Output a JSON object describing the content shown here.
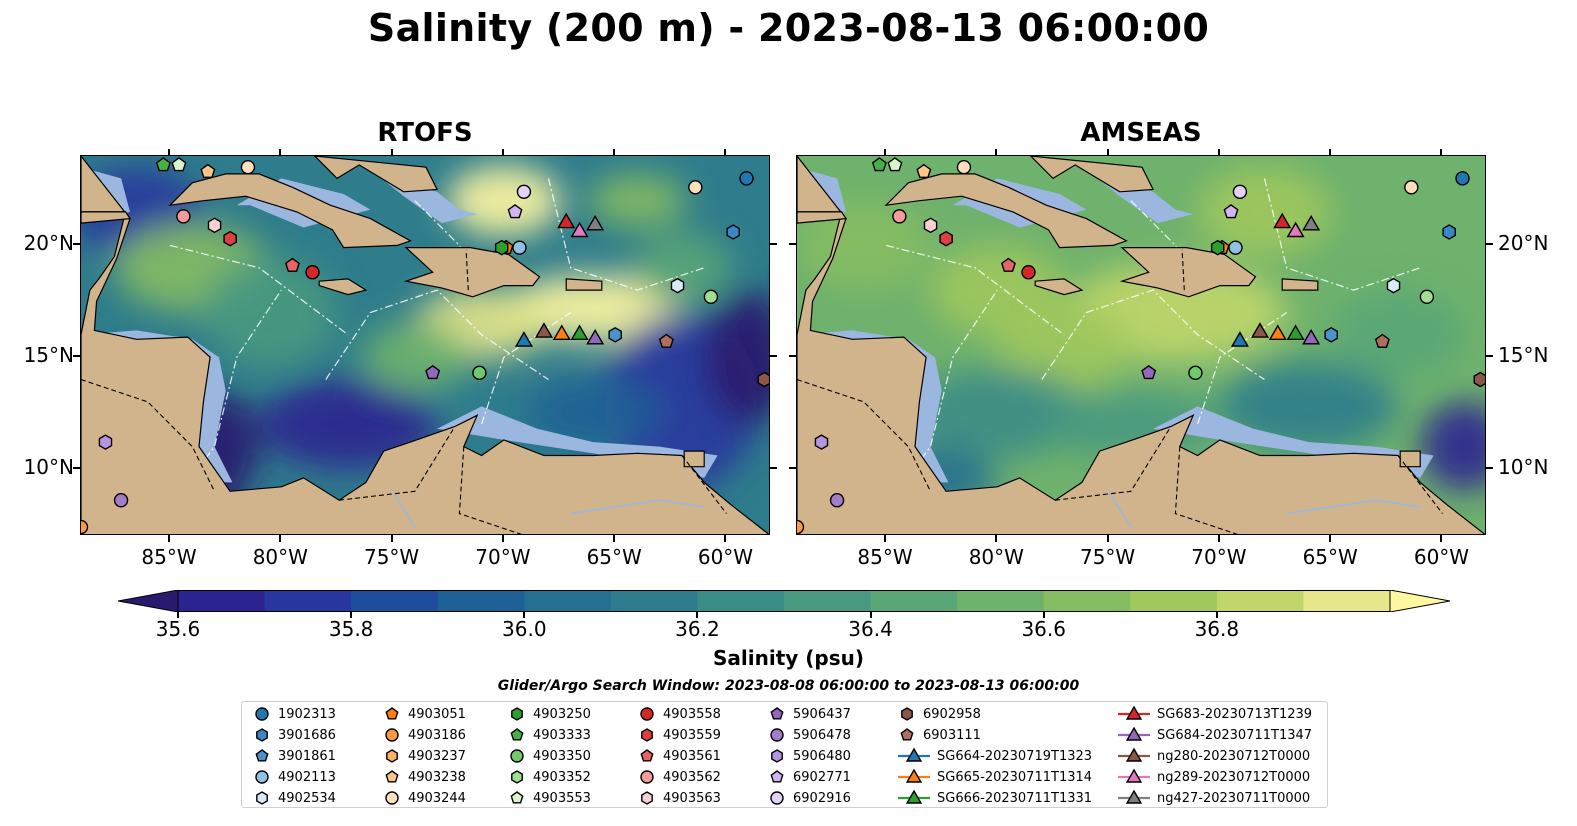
{
  "title": "Salinity (200 m) - 2023-08-13 06:00:00",
  "panels": [
    {
      "title": "RTOFS"
    },
    {
      "title": "AMSEAS"
    }
  ],
  "axes": {
    "x_ticks": [
      "85°W",
      "80°W",
      "75°W",
      "70°W",
      "65°W",
      "60°W"
    ],
    "y_ticks": [
      "20°N",
      "15°N",
      "10°N"
    ]
  },
  "colorbar": {
    "label": "Salinity (psu)",
    "ticks": [
      "35.6",
      "35.8",
      "36.0",
      "36.2",
      "36.4",
      "36.6",
      "36.8"
    ],
    "colors": [
      "#2a1a6e",
      "#2b2490",
      "#27379f",
      "#1f4d9e",
      "#1f6096",
      "#256f91",
      "#2f7d8c",
      "#3a8c86",
      "#48997f",
      "#5aa677",
      "#6fb26d",
      "#86bd63",
      "#a0c85c",
      "#c1d66a",
      "#e6e68a",
      "#fff7a1"
    ]
  },
  "search_window": "Glider/Argo Search Window: 2023-08-08 06:00:00 to 2023-08-13 06:00:00",
  "legend": {
    "items": [
      {
        "label": "1902313",
        "marker": "circle",
        "color": "#1f77b4"
      },
      {
        "label": "3901686",
        "marker": "hexagon",
        "color": "#3a87c8"
      },
      {
        "label": "3901861",
        "marker": "pentagon",
        "color": "#4a93d1"
      },
      {
        "label": "4902113",
        "marker": "circle",
        "color": "#8fc1e6"
      },
      {
        "label": "4902534",
        "marker": "hexagon",
        "color": "#d6eaf8"
      },
      {
        "label": "4903051",
        "marker": "pentagon",
        "color": "#ff7f0e"
      },
      {
        "label": "4903186",
        "marker": "circle",
        "color": "#ff9a3c"
      },
      {
        "label": "4903237",
        "marker": "hexagon",
        "color": "#ffb064"
      },
      {
        "label": "4903238",
        "marker": "pentagon",
        "color": "#ffc38c"
      },
      {
        "label": "4903244",
        "marker": "circle",
        "color": "#ffe0bc"
      },
      {
        "label": "4903250",
        "marker": "hexagon",
        "color": "#2ca02c"
      },
      {
        "label": "4903333",
        "marker": "pentagon",
        "color": "#45b045"
      },
      {
        "label": "4903350",
        "marker": "circle",
        "color": "#72c96a"
      },
      {
        "label": "4903352",
        "marker": "hexagon",
        "color": "#a2dd94"
      },
      {
        "label": "4903553",
        "marker": "pentagon",
        "color": "#d8f5cc"
      },
      {
        "label": "4903558",
        "marker": "circle",
        "color": "#d62728"
      },
      {
        "label": "4903559",
        "marker": "hexagon",
        "color": "#dd4040"
      },
      {
        "label": "4903561",
        "marker": "pentagon",
        "color": "#e86464"
      },
      {
        "label": "4903562",
        "marker": "circle",
        "color": "#f59b9b"
      },
      {
        "label": "4903563",
        "marker": "hexagon",
        "color": "#fcd0d0"
      },
      {
        "label": "5906437",
        "marker": "pentagon",
        "color": "#9467bd"
      },
      {
        "label": "5906478",
        "marker": "circle",
        "color": "#a57ccc"
      },
      {
        "label": "5906480",
        "marker": "hexagon",
        "color": "#b794e0"
      },
      {
        "label": "6902771",
        "marker": "pentagon",
        "color": "#d2b4f2"
      },
      {
        "label": "6902916",
        "marker": "circle",
        "color": "#e3d0fb"
      },
      {
        "label": "6902958",
        "marker": "hexagon",
        "color": "#8c564b"
      },
      {
        "label": "6903111",
        "marker": "pentagon",
        "color": "#b06e5f"
      },
      {
        "label": "SG664-20230719T1323",
        "marker": "triangle-line",
        "color": "#1f77b4"
      },
      {
        "label": "SG665-20230711T1314",
        "marker": "triangle-line",
        "color": "#ff7f0e"
      },
      {
        "label": "SG666-20230711T1331",
        "marker": "triangle-line",
        "color": "#2ca02c"
      },
      {
        "label": "SG683-20230713T1239",
        "marker": "triangle-line",
        "color": "#d62728"
      },
      {
        "label": "SG684-20230711T1347",
        "marker": "triangle-line",
        "color": "#9467bd"
      },
      {
        "label": "ng280-20230712T0000",
        "marker": "triangle-line",
        "color": "#8c564b"
      },
      {
        "label": "ng289-20230712T0000",
        "marker": "triangle-line",
        "color": "#e377c2"
      },
      {
        "label": "ng427-20230711T0000",
        "marker": "triangle-line",
        "color": "#7f7f7f"
      }
    ]
  },
  "map": {
    "lon_range": [
      -89,
      -58
    ],
    "lat_range": [
      7,
      24
    ],
    "land_color": "#d2b48c",
    "shallow_color": "#9bb7e0",
    "markers": [
      {
        "lon": -59.1,
        "lat": 23.0,
        "shape": "circle",
        "color": "#1f77b4"
      },
      {
        "lon": -59.7,
        "lat": 20.6,
        "shape": "hexagon",
        "color": "#3a87c8"
      },
      {
        "lon": -69.3,
        "lat": 19.9,
        "shape": "circle",
        "color": "#8fc1e6"
      },
      {
        "lon": -62.2,
        "lat": 18.2,
        "shape": "hexagon",
        "color": "#d6eaf8"
      },
      {
        "lon": -65.0,
        "lat": 16.0,
        "shape": "hexagon",
        "color": "#4a93d1"
      },
      {
        "lon": -69.9,
        "lat": 19.9,
        "shape": "pentagon",
        "color": "#ff7f0e"
      },
      {
        "lon": -89.0,
        "lat": 7.4,
        "shape": "circle",
        "color": "#ff9a3c"
      },
      {
        "lon": -83.3,
        "lat": 23.3,
        "shape": "pentagon",
        "color": "#ffc38c"
      },
      {
        "lon": -81.5,
        "lat": 23.5,
        "shape": "circle",
        "color": "#ffe0bc"
      },
      {
        "lon": -70.1,
        "lat": 19.9,
        "shape": "hexagon",
        "color": "#2ca02c"
      },
      {
        "lon": -85.3,
        "lat": 23.6,
        "shape": "pentagon",
        "color": "#45b045"
      },
      {
        "lon": -60.7,
        "lat": 17.7,
        "shape": "circle",
        "color": "#a2dd94"
      },
      {
        "lon": -71.1,
        "lat": 14.3,
        "shape": "circle",
        "color": "#72c96a"
      },
      {
        "lon": -84.6,
        "lat": 23.6,
        "shape": "pentagon",
        "color": "#d8f5cc"
      },
      {
        "lon": -78.6,
        "lat": 18.8,
        "shape": "circle",
        "color": "#d62728"
      },
      {
        "lon": -82.3,
        "lat": 20.3,
        "shape": "hexagon",
        "color": "#dd4040"
      },
      {
        "lon": -79.5,
        "lat": 19.1,
        "shape": "pentagon",
        "color": "#e86464"
      },
      {
        "lon": -84.4,
        "lat": 21.3,
        "shape": "circle",
        "color": "#f59b9b"
      },
      {
        "lon": -83.0,
        "lat": 20.9,
        "shape": "hexagon",
        "color": "#fcd0d0"
      },
      {
        "lon": -73.2,
        "lat": 14.3,
        "shape": "pentagon",
        "color": "#9467bd"
      },
      {
        "lon": -87.2,
        "lat": 8.6,
        "shape": "circle",
        "color": "#a57ccc"
      },
      {
        "lon": -87.9,
        "lat": 11.2,
        "shape": "hexagon",
        "color": "#b794e0"
      },
      {
        "lon": -69.5,
        "lat": 21.5,
        "shape": "pentagon",
        "color": "#d2b4f2"
      },
      {
        "lon": -69.1,
        "lat": 22.4,
        "shape": "circle",
        "color": "#e3d0fb"
      },
      {
        "lon": -61.4,
        "lat": 22.6,
        "shape": "circle",
        "color": "#ffe0bc"
      },
      {
        "lon": -58.3,
        "lat": 14.0,
        "shape": "hexagon",
        "color": "#8c564b"
      },
      {
        "lon": -62.7,
        "lat": 15.7,
        "shape": "pentagon",
        "color": "#b06e5f"
      },
      {
        "lon": -69.1,
        "lat": 15.7,
        "shape": "triangle",
        "color": "#1f77b4"
      },
      {
        "lon": -67.4,
        "lat": 16.0,
        "shape": "triangle",
        "color": "#ff7f0e"
      },
      {
        "lon": -66.6,
        "lat": 16.0,
        "shape": "triangle",
        "color": "#2ca02c"
      },
      {
        "lon": -67.2,
        "lat": 21.0,
        "shape": "triangle",
        "color": "#d62728"
      },
      {
        "lon": -65.9,
        "lat": 15.8,
        "shape": "triangle",
        "color": "#9467bd"
      },
      {
        "lon": -68.2,
        "lat": 16.1,
        "shape": "triangle",
        "color": "#8c564b"
      },
      {
        "lon": -66.6,
        "lat": 20.6,
        "shape": "triangle",
        "color": "#e377c2"
      },
      {
        "lon": -65.9,
        "lat": 20.9,
        "shape": "triangle",
        "color": "#7f7f7f"
      }
    ]
  }
}
